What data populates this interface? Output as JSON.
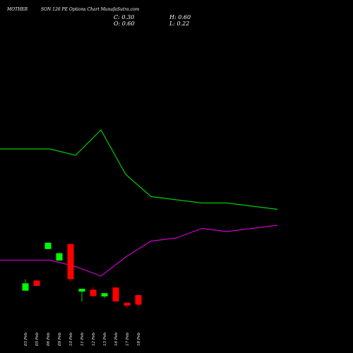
{
  "header": {
    "symbol": "MOTHERSON",
    "title_part1": "MOTHER",
    "title_part2": "SON  126  PE Options  Chart MunafaSutra.com",
    "close": "C: 0.30",
    "open": "O: 0.60",
    "high": "H: 0.60",
    "low": "L: 0.22"
  },
  "chart_data": {
    "type": "candlestick",
    "title": "MOTHERSON 126 PE Options Chart MunafaSutra.com",
    "x": [
      "03 Feb",
      "05 Feb",
      "06 Feb",
      "09 Feb",
      "10 Feb",
      "11 Feb",
      "12 Feb",
      "13 Feb",
      "16 Feb",
      "17 Feb",
      "18 Feb"
    ],
    "candles": [
      {
        "date": "03 Feb",
        "open": 0.74,
        "close": 0.97,
        "high": 1.1,
        "low": 0.74,
        "color": "green"
      },
      {
        "date": "05 Feb",
        "open": 1.06,
        "close": 0.89,
        "high": 1.06,
        "low": 0.89,
        "color": "red"
      },
      {
        "date": "06 Feb",
        "open": 2.05,
        "close": 2.25,
        "high": 2.25,
        "low": 2.05,
        "color": "green"
      },
      {
        "date": "09 Feb",
        "open": 1.69,
        "close": 1.92,
        "high": 1.92,
        "low": 1.69,
        "color": "green"
      },
      {
        "date": "10 Feb",
        "open": 2.21,
        "close": 1.1,
        "high": 2.21,
        "low": 1.02,
        "color": "red"
      },
      {
        "date": "11 Feb",
        "open": 0.71,
        "close": 0.8,
        "high": 0.8,
        "low": 0.4,
        "color": "green"
      },
      {
        "date": "12 Feb",
        "open": 0.77,
        "close": 0.57,
        "high": 0.85,
        "low": 0.52,
        "color": "red"
      },
      {
        "date": "13 Feb",
        "open": 0.56,
        "close": 0.66,
        "high": 0.66,
        "low": 0.5,
        "color": "green"
      },
      {
        "date": "16 Feb",
        "open": 0.84,
        "close": 0.4,
        "high": 0.84,
        "low": 0.4,
        "color": "red"
      },
      {
        "date": "17 Feb",
        "open": 0.36,
        "close": 0.27,
        "high": 0.36,
        "low": 0.19,
        "color": "red"
      },
      {
        "date": "18 Feb",
        "open": 0.6,
        "close": 0.3,
        "high": 0.6,
        "low": 0.22,
        "color": "red"
      }
    ],
    "series": [
      {
        "color": "#00cc00",
        "values": [
          5.2,
          5.2,
          5.0,
          5.8,
          4.4,
          3.7,
          3.6,
          3.5,
          3.5,
          3.4,
          3.3
        ]
      },
      {
        "color": "#cc00cc",
        "values": [
          1.7,
          1.7,
          1.5,
          1.2,
          1.8,
          2.3,
          2.4,
          2.7,
          2.6,
          2.7,
          2.8
        ]
      }
    ],
    "y_range": [
      -1,
      9
    ],
    "colors": {
      "background": "#000000",
      "up": "#00ff00",
      "down": "#ff0000",
      "text": "#ffffff"
    }
  }
}
